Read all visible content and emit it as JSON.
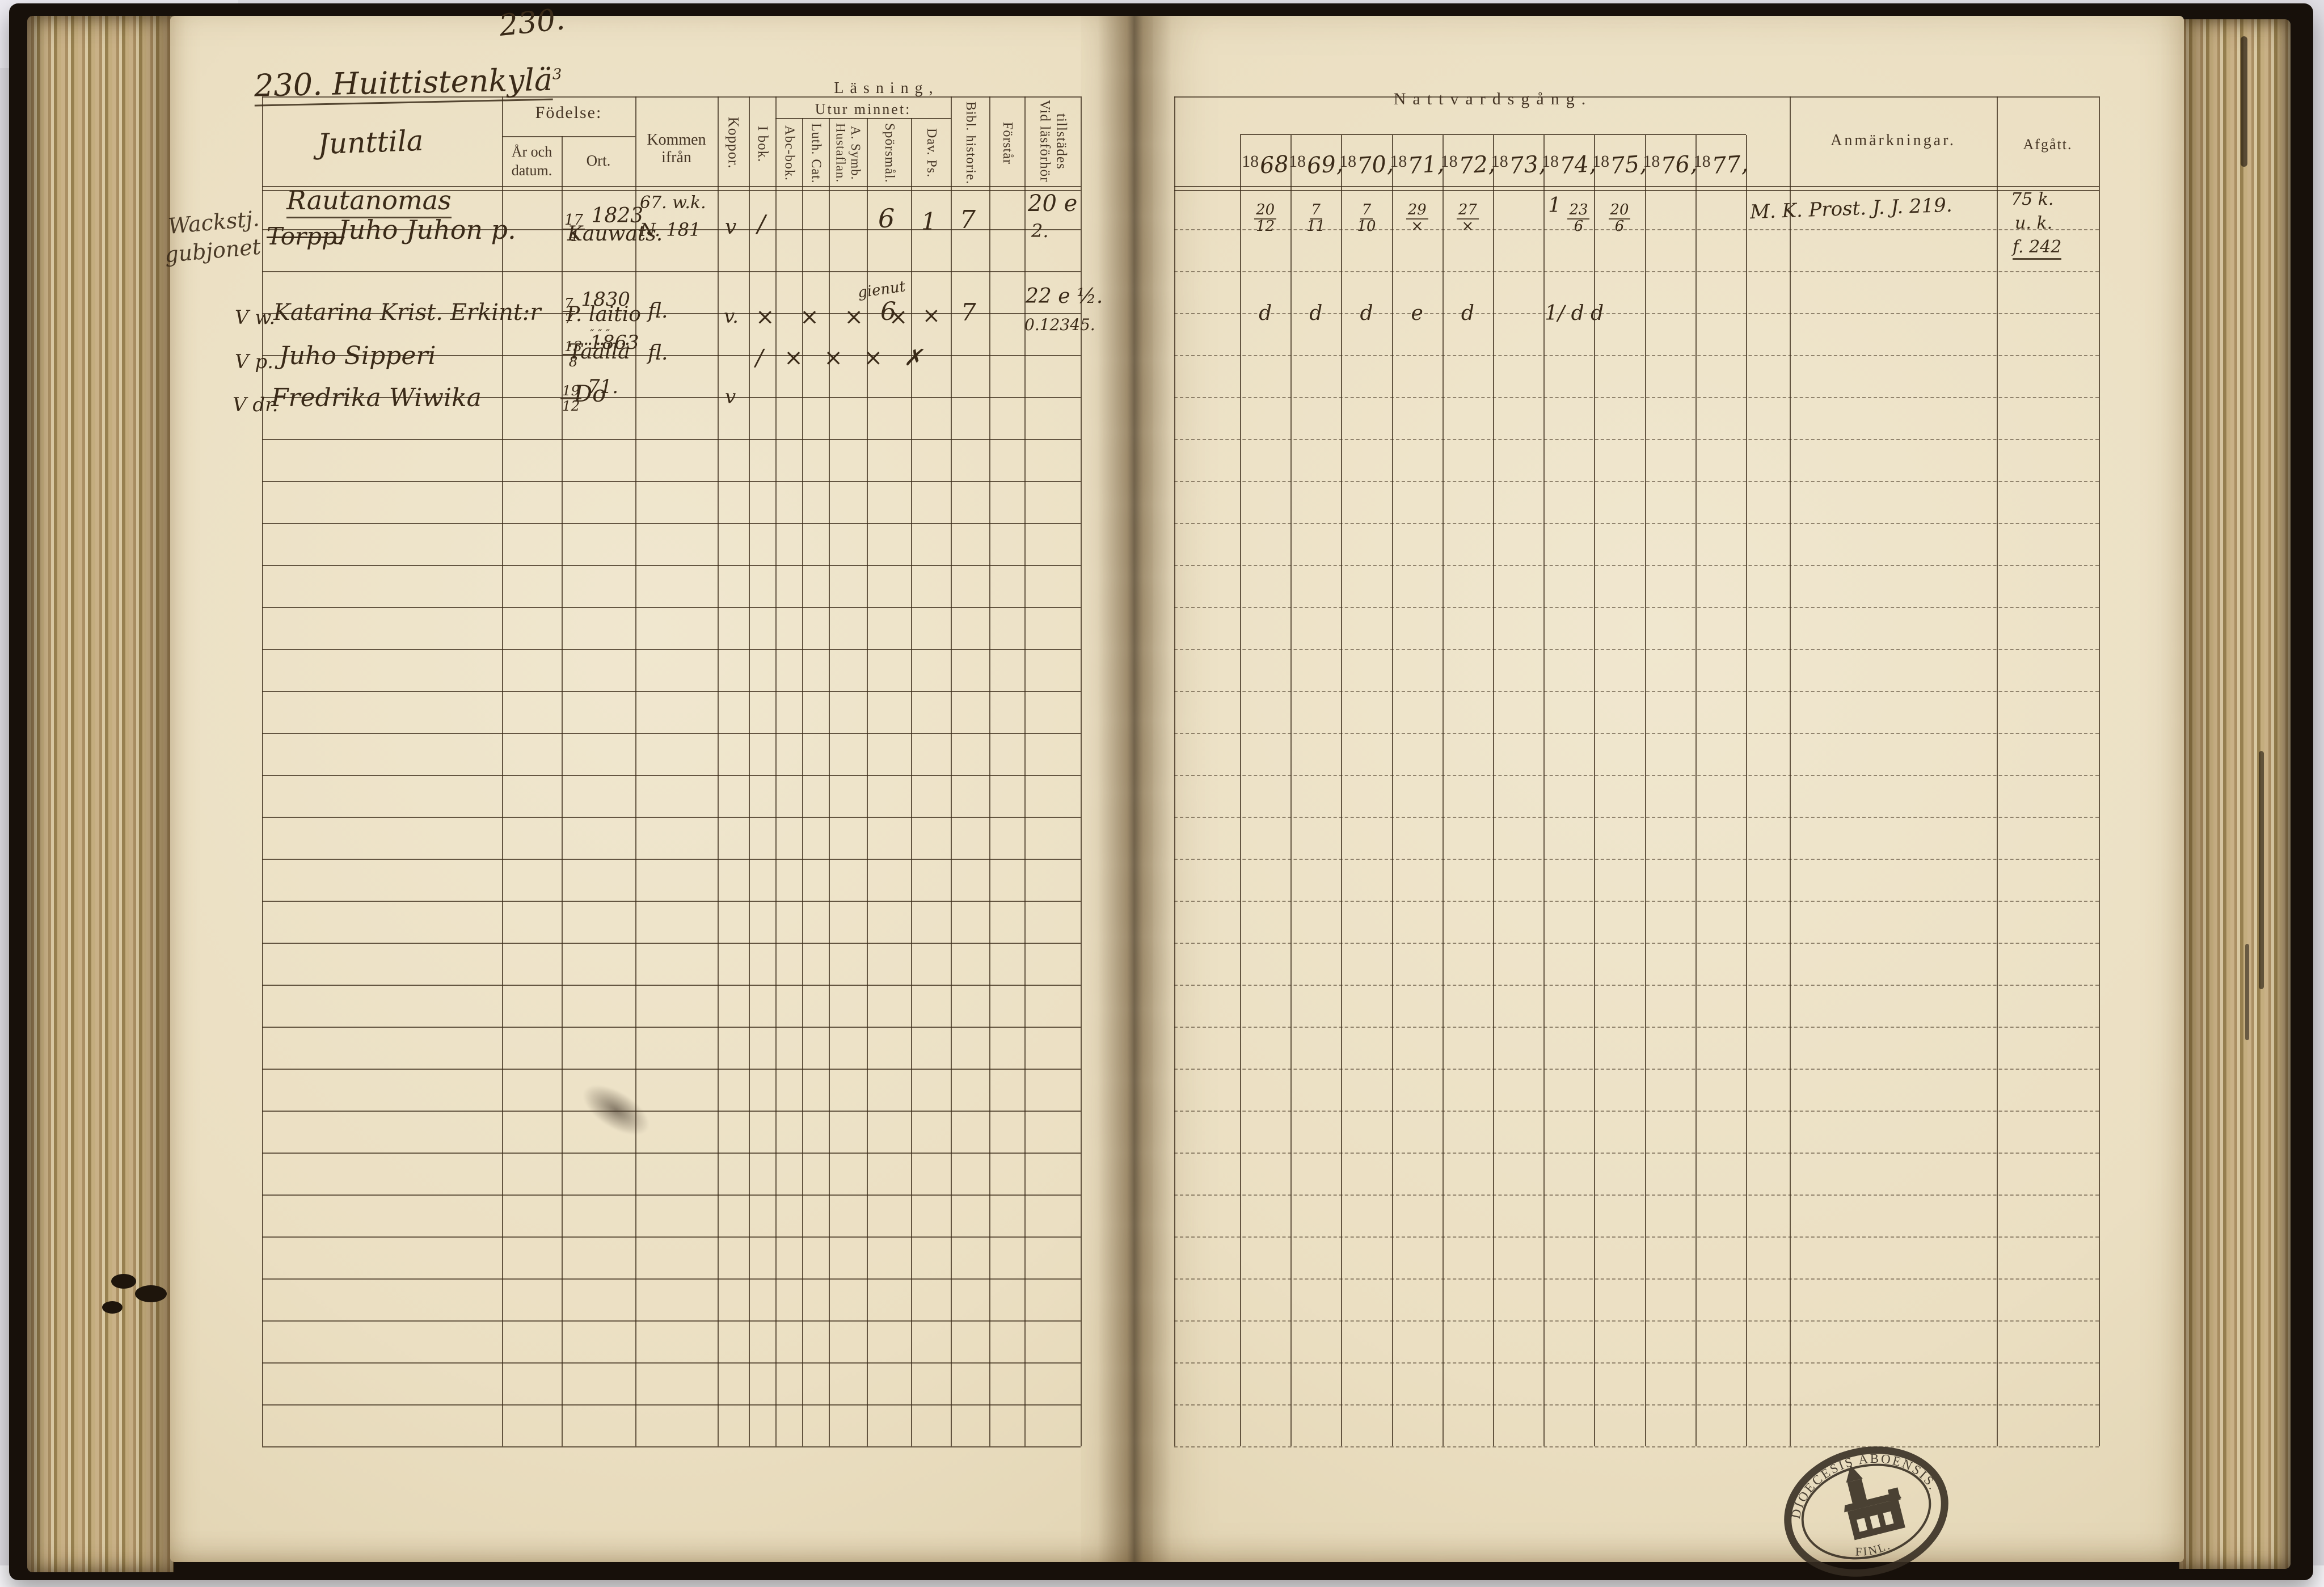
{
  "scan": {
    "backdrop_color": "#e0dee4",
    "paper_color": "#ece1c6",
    "printed_ink_color": "#463626",
    "handwriting_ink_color": "#3a2a18"
  },
  "left_page": {
    "folio": "230.",
    "title": "230. Huittistenkylä",
    "title_sup": "3",
    "farm_name": "Junttila",
    "headers": {
      "fodelse": "Födelse:",
      "ar_datum": "År och datum.",
      "ort": "Ort.",
      "kommen_ifran": "Kommen ifrån",
      "koppor": "Koppor.",
      "lasning": "Läsning,",
      "i_bok": "I bok.",
      "utur_minnet": "Utur minnet:",
      "abc_bok": "Abc-bok.",
      "luth_cat": "Luth. Cat.",
      "hustaflan": "Hustaflan. A. Symb.",
      "sporsmal": "Spörsmål.",
      "dav_ps": "Dav. Ps.",
      "bibl_historie": "Bibl. historie.",
      "forstar": "Förstår",
      "vid_lasforhor": "Vid läsförhör tillstädes"
    },
    "margin_note_line1": "Wackstj.",
    "margin_note_line2": "gubjonet",
    "group_heading": "Rautanomas",
    "rows": [
      {
        "check": "",
        "title_struck": "Torpp.",
        "name": "Juho Juhon p.",
        "born": "17⁄4 1823",
        "ort": "Kauwats.",
        "kommen_line1": "67. w.k.",
        "kommen_line2": "N. 181",
        "koppor": "v",
        "i_bok": "∕",
        "sporsmal": "6",
        "dav_ps": "1",
        "bibl_historie": "7",
        "vid_line1": "20 e",
        "vid_line2": "2."
      },
      {
        "check": "V w.",
        "name": "Katarina Krist. Erkint:r",
        "born": "7⁄7 1830",
        "ort": "P. laitio",
        "kommen": "fl.",
        "koppor": "v.",
        "marks": "× × × ×",
        "note_above_sporsmal": "gienut",
        "sporsmal": "6",
        "dav_ps": "×",
        "bibl_historie": "7",
        "vid_line1": "22 e ½.",
        "vid_line2": "0.12345."
      },
      {
        "check": "V p.",
        "name": "Juho Sipperi",
        "born": "13⁄8 1863",
        "ort": "Täällä",
        "ort_marks": "″ ″ ″",
        "kommen": "fl.",
        "marks": "∕ × × × ✗"
      },
      {
        "check": "V dr.",
        "name": "Fredrika Wiwika",
        "born": "19⁄12 71.",
        "ort": "Do",
        "koppor": "v"
      }
    ]
  },
  "right_page": {
    "communion_title": "Nattvardsgång.",
    "years": [
      "1868",
      "1869,",
      "1870,",
      "1871,",
      "1872,",
      "1873,",
      "1874,",
      "1875,",
      "1876,",
      "1877,"
    ],
    "anmarkningar_label": "Anmärkningar.",
    "afgatt_label": "Afgått.",
    "communion_row_1": [
      "20⁄12",
      "7⁄11",
      "7⁄10",
      "29⁄×",
      "27⁄×",
      "",
      "1 23⁄6",
      "20⁄6",
      "",
      ""
    ],
    "communion_row_2": [
      "d",
      "d",
      "d",
      "e",
      "d",
      "",
      "1∕ d d",
      "",
      "",
      ""
    ],
    "anm_row_1": "M. K. Prost. J. J. 219.",
    "afgatt_row_1": [
      "75 k.",
      "u. k.",
      "f. 242"
    ],
    "stamp": {
      "top_text": "DIOECESIS ABOENSIS.",
      "bottom_text": "FINL.",
      "symbol": "church"
    }
  }
}
